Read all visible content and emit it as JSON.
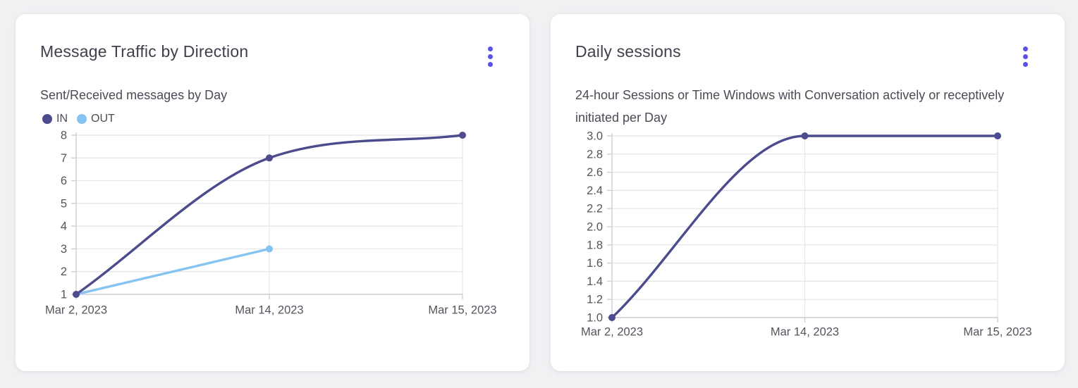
{
  "theme": {
    "page_bg": "#f1f1f4",
    "card_bg": "#ffffff",
    "accent": "#5a52e8",
    "title_color": "#40404c",
    "subtitle_color": "#4b4b56",
    "tick_label_color": "#54545e",
    "gridline_color": "#e4e4e9",
    "axis_color": "#cdcdd6",
    "series_in_color": "#4b4b8e",
    "series_out_color": "#85c3f0"
  },
  "cards": [
    {
      "title": "Message Traffic by Direction",
      "subtitle": "Sent/Received messages by Day",
      "menu_icon": "kebab-menu-icon"
    },
    {
      "title": "Daily sessions",
      "subtitle": "24-hour Sessions or Time Windows with Conversation actively or receptively initiated per Day",
      "menu_icon": "kebab-menu-icon"
    }
  ],
  "chart_data": [
    {
      "type": "line",
      "title": "Message Traffic by Direction",
      "subtitle": "Sent/Received messages by Day",
      "categories": [
        "Mar 2, 2023",
        "Mar 14, 2023",
        "Mar 15, 2023"
      ],
      "series": [
        {
          "name": "IN",
          "values": [
            1,
            7,
            8
          ],
          "color": "#4b4b8e"
        },
        {
          "name": "OUT",
          "values": [
            1,
            3,
            null
          ],
          "color": "#85c3f0"
        }
      ],
      "ylim": [
        1,
        8
      ],
      "y_ticks": [
        1,
        2,
        3,
        4,
        5,
        6,
        7,
        8
      ],
      "y_tick_labels": [
        "1",
        "2",
        "3",
        "4",
        "5",
        "6",
        "7",
        "8"
      ],
      "xlabel": "",
      "ylabel": "",
      "grid": true,
      "curve": "monotone",
      "legend_position": "top-left"
    },
    {
      "type": "line",
      "title": "Daily sessions",
      "subtitle": "24-hour Sessions or Time Windows with Conversation actively or receptively initiated per Day",
      "categories": [
        "Mar 2, 2023",
        "Mar 14, 2023",
        "Mar 15, 2023"
      ],
      "series": [
        {
          "name": "Daily sessions",
          "values": [
            1,
            3,
            3
          ],
          "color": "#4b4b8e"
        }
      ],
      "ylim": [
        1,
        3
      ],
      "y_ticks": [
        1,
        1.2,
        1.4,
        1.6,
        1.8,
        2,
        2.2,
        2.4,
        2.6,
        2.8,
        3
      ],
      "y_tick_labels": [
        "1.0",
        "1.2",
        "1.4",
        "1.6",
        "1.8",
        "2.0",
        "2.2",
        "2.4",
        "2.6",
        "2.8",
        "3.0"
      ],
      "xlabel": "",
      "ylabel": "",
      "grid": true,
      "curve": "monotone",
      "legend_position": "none"
    }
  ]
}
